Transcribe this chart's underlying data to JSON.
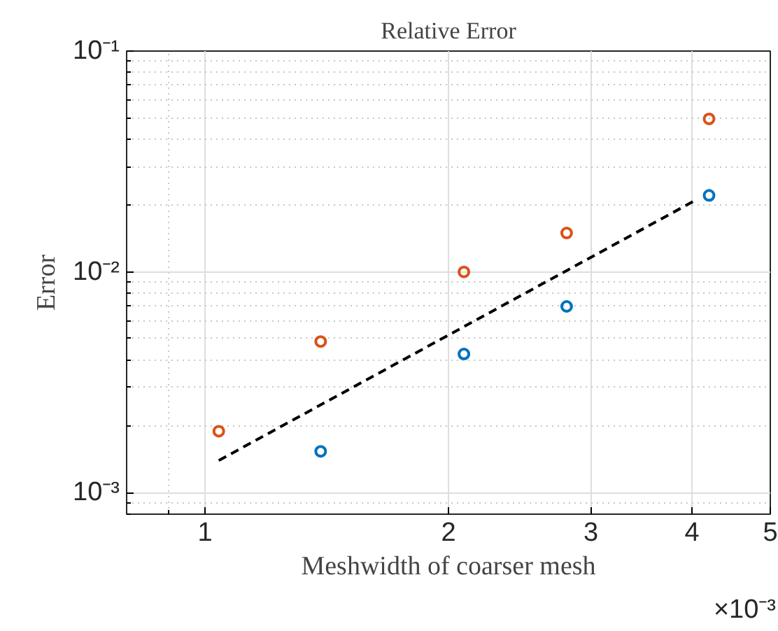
{
  "chart_data": {
    "type": "scatter",
    "title": "Relative Error",
    "xlabel": "Meshwidth of coarser mesh",
    "ylabel": "Error",
    "log": "xy",
    "grid": true,
    "marker": "circle",
    "xlim": [
      0.8,
      5
    ],
    "ylim": [
      0.0008,
      0.1
    ],
    "xticks": [
      1,
      2,
      3,
      4,
      5
    ],
    "yticks": [
      {
        "value": 0.001,
        "label": "10⁻³"
      },
      {
        "value": 0.01,
        "label": "10⁻²"
      },
      {
        "value": 0.1,
        "label": "10⁻¹"
      }
    ],
    "annotations": [
      "×10⁻³"
    ],
    "series": [
      {
        "color": "#d95319",
        "x": [
          1.04,
          1.39,
          2.09,
          2.8,
          4.2
        ],
        "values": [
          0.0019,
          0.00484,
          0.01,
          0.015,
          0.0493
        ]
      },
      {
        "color": "#0072bd",
        "x": [
          1.39,
          2.09,
          2.8,
          4.2
        ],
        "values": [
          0.00154,
          0.00425,
          0.00698,
          0.0222
        ]
      },
      {
        "type": "line",
        "line_style": "dashed",
        "marker": "none",
        "color": "#000000",
        "x": [
          1.04,
          4.02
        ],
        "values": [
          0.0014,
          0.0209
        ]
      }
    ]
  }
}
